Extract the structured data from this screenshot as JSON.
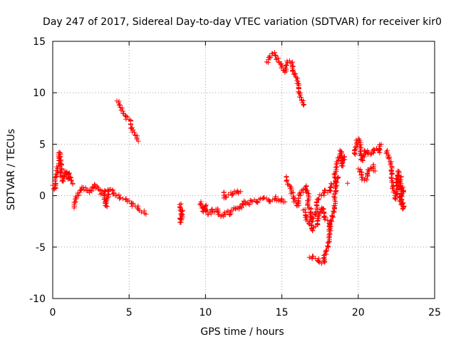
{
  "chart_data": {
    "type": "scatter",
    "title": "Day 247 of 2017, Sidereal Day-to-day VTEC variation (SDTVAR) for receiver kir0",
    "xlabel": "GPS time / hours",
    "ylabel": "SDTVAR / TECUs",
    "xlim": [
      0,
      25
    ],
    "ylim": [
      -10,
      15
    ],
    "xticks": [
      0,
      5,
      10,
      15,
      20,
      25
    ],
    "yticks": [
      -10,
      -5,
      0,
      5,
      10,
      15
    ],
    "xtick_labels": [
      "0",
      "5",
      "10",
      "15",
      "20",
      "25"
    ],
    "ytick_labels": [
      "-10",
      "-5",
      "0",
      "5",
      "10",
      "15"
    ],
    "grid": true,
    "marker": "+",
    "color": "#ff0000",
    "series": [
      {
        "name": "SDTVAR",
        "segments": [
          [
            [
              0.0,
              1.0
            ],
            [
              0.1,
              0.6
            ],
            [
              0.2,
              1.2
            ],
            [
              0.3,
              2.4
            ],
            [
              0.4,
              3.4
            ],
            [
              0.45,
              4.2
            ],
            [
              0.5,
              2.8
            ],
            [
              0.6,
              1.8
            ],
            [
              0.7,
              1.4
            ],
            [
              0.8,
              2.4
            ],
            [
              0.9,
              2.0
            ],
            [
              1.0,
              1.6
            ],
            [
              1.1,
              2.2
            ],
            [
              1.2,
              1.5
            ],
            [
              1.3,
              1.2
            ]
          ],
          [
            [
              1.4,
              -1.2
            ],
            [
              1.5,
              -0.6
            ],
            [
              1.6,
              0.0
            ],
            [
              1.8,
              0.5
            ],
            [
              2.0,
              0.8
            ],
            [
              2.2,
              0.5
            ],
            [
              2.4,
              0.3
            ],
            [
              2.6,
              0.8
            ],
            [
              2.8,
              1.0
            ],
            [
              3.0,
              0.6
            ],
            [
              3.2,
              0.2
            ],
            [
              3.4,
              0.5
            ],
            [
              3.5,
              -1.0
            ],
            [
              3.6,
              0.4
            ],
            [
              3.8,
              0.6
            ],
            [
              4.0,
              0.2
            ],
            [
              4.2,
              0.0
            ],
            [
              4.4,
              -0.2
            ],
            [
              4.6,
              -0.3
            ],
            [
              4.8,
              -0.3
            ],
            [
              5.0,
              -0.5
            ],
            [
              5.2,
              -0.8
            ],
            [
              5.4,
              -1.0
            ],
            [
              5.6,
              -1.3
            ],
            [
              5.8,
              -1.6
            ],
            [
              6.0,
              -1.7
            ],
            [
              6.1,
              -1.8
            ]
          ],
          [
            [
              4.2,
              9.2
            ],
            [
              4.4,
              8.8
            ],
            [
              4.6,
              8.0
            ],
            [
              4.8,
              7.7
            ],
            [
              5.0,
              7.4
            ],
            [
              5.2,
              6.6
            ],
            [
              5.4,
              5.9
            ],
            [
              5.5,
              5.5
            ],
            [
              5.6,
              5.3
            ]
          ],
          [
            [
              8.4,
              -0.8
            ],
            [
              8.4,
              -2.6
            ],
            [
              8.45,
              -1.5
            ]
          ],
          [
            [
              9.7,
              -0.6
            ],
            [
              9.8,
              -1.5
            ],
            [
              10.0,
              -1.0
            ],
            [
              10.2,
              -1.8
            ],
            [
              10.4,
              -1.4
            ],
            [
              10.6,
              -1.6
            ],
            [
              10.8,
              -1.3
            ],
            [
              11.0,
              -2.0
            ],
            [
              11.2,
              -1.8
            ],
            [
              11.4,
              -1.6
            ],
            [
              11.6,
              -1.8
            ],
            [
              11.8,
              -1.4
            ],
            [
              12.0,
              -1.2
            ],
            [
              12.2,
              -1.3
            ],
            [
              12.4,
              -0.8
            ],
            [
              12.6,
              -0.6
            ],
            [
              12.8,
              -0.8
            ],
            [
              13.0,
              -0.5
            ],
            [
              13.2,
              -0.4
            ],
            [
              13.4,
              -0.6
            ],
            [
              13.6,
              -0.3
            ],
            [
              13.8,
              -0.2
            ],
            [
              14.0,
              -0.3
            ],
            [
              14.2,
              -0.5
            ],
            [
              14.4,
              -0.4
            ],
            [
              14.6,
              -0.1
            ],
            [
              14.8,
              -0.5
            ],
            [
              15.0,
              -0.3
            ],
            [
              15.2,
              -0.6
            ]
          ],
          [
            [
              11.2,
              0.3
            ],
            [
              11.3,
              -0.2
            ],
            [
              11.5,
              0.1
            ],
            [
              11.8,
              0.2
            ],
            [
              12.0,
              0.3
            ],
            [
              12.3,
              0.4
            ]
          ],
          [
            [
              14.0,
              13.0
            ],
            [
              14.2,
              13.4
            ],
            [
              14.4,
              13.8
            ],
            [
              14.6,
              13.6
            ],
            [
              14.8,
              13.0
            ],
            [
              15.0,
              12.6
            ],
            [
              15.2,
              12.0
            ],
            [
              15.3,
              12.7
            ],
            [
              15.5,
              13.1
            ],
            [
              15.7,
              12.6
            ],
            [
              15.9,
              11.6
            ],
            [
              16.0,
              10.9
            ],
            [
              16.2,
              10.0
            ],
            [
              16.3,
              9.3
            ],
            [
              16.4,
              8.8
            ]
          ],
          [
            [
              15.3,
              1.8
            ],
            [
              15.5,
              1.0
            ],
            [
              15.6,
              0.2
            ],
            [
              15.8,
              -0.2
            ],
            [
              16.0,
              -1.0
            ],
            [
              16.2,
              0.0
            ],
            [
              16.4,
              0.6
            ],
            [
              16.6,
              0.9
            ],
            [
              16.8,
              -1.2
            ],
            [
              17.0,
              -2.5
            ],
            [
              17.2,
              -1.6
            ],
            [
              17.4,
              -0.4
            ],
            [
              17.6,
              0.0
            ],
            [
              17.8,
              0.5
            ],
            [
              18.0,
              0.3
            ],
            [
              18.2,
              0.8
            ],
            [
              18.4,
              1.2
            ],
            [
              18.5,
              2.2
            ],
            [
              18.6,
              2.8
            ],
            [
              18.7,
              3.4
            ],
            [
              18.8,
              4.4
            ],
            [
              18.9,
              3.6
            ],
            [
              19.0,
              2.9
            ],
            [
              19.1,
              3.8
            ]
          ],
          [
            [
              16.4,
              -1.4
            ],
            [
              16.6,
              -2.0
            ],
            [
              16.8,
              -2.8
            ],
            [
              17.0,
              -3.4
            ],
            [
              17.2,
              -3.0
            ],
            [
              17.4,
              -2.2
            ],
            [
              17.6,
              -1.2
            ],
            [
              17.8,
              -2.0
            ],
            [
              18.0,
              -2.4
            ],
            [
              18.1,
              -3.0
            ],
            [
              18.2,
              -3.4
            ]
          ],
          [
            [
              16.8,
              -6.0
            ],
            [
              17.0,
              -5.9
            ],
            [
              17.2,
              -6.1
            ],
            [
              17.4,
              -6.4
            ],
            [
              17.6,
              -6.6
            ],
            [
              17.8,
              -6.2
            ],
            [
              17.9,
              -5.4
            ],
            [
              18.0,
              -4.6
            ],
            [
              18.1,
              -3.8
            ],
            [
              18.2,
              -3.0
            ],
            [
              18.3,
              -2.0
            ],
            [
              18.4,
              -1.0
            ],
            [
              18.5,
              0.2
            ],
            [
              18.6,
              1.0
            ],
            [
              18.7,
              1.8
            ]
          ],
          [
            [
              19.3,
              1.2
            ]
          ],
          [
            [
              19.8,
              4.0
            ],
            [
              19.9,
              5.1
            ],
            [
              20.0,
              5.5
            ],
            [
              20.1,
              4.8
            ],
            [
              20.2,
              4.0
            ],
            [
              20.3,
              3.4
            ],
            [
              20.4,
              4.4
            ],
            [
              20.6,
              4.2
            ],
            [
              20.8,
              4.0
            ],
            [
              21.0,
              4.5
            ],
            [
              21.2,
              4.6
            ],
            [
              21.4,
              4.2
            ],
            [
              21.5,
              5.0
            ]
          ],
          [
            [
              20.0,
              2.6
            ],
            [
              20.2,
              2.0
            ],
            [
              20.4,
              1.5
            ],
            [
              20.6,
              1.9
            ],
            [
              20.8,
              2.7
            ],
            [
              21.0,
              3.0
            ],
            [
              21.1,
              2.4
            ]
          ],
          [
            [
              21.9,
              4.4
            ],
            [
              22.0,
              3.6
            ],
            [
              22.1,
              3.0
            ],
            [
              22.2,
              2.2
            ],
            [
              22.3,
              1.0
            ],
            [
              22.4,
              -0.3
            ],
            [
              22.5,
              0.4
            ],
            [
              22.6,
              2.4
            ],
            [
              22.7,
              1.4
            ],
            [
              22.8,
              -0.6
            ],
            [
              22.9,
              -1.3
            ],
            [
              22.9,
              0.2
            ],
            [
              22.8,
              1.8
            ]
          ]
        ]
      }
    ]
  }
}
